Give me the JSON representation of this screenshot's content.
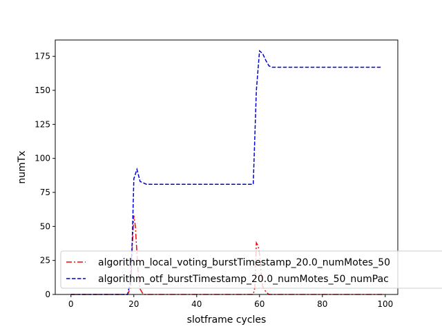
{
  "chart_data": {
    "type": "line",
    "title": "",
    "xlabel": "slotframe cycles",
    "ylabel": "numTx",
    "xlim": [
      -5,
      104
    ],
    "ylim": [
      0,
      187
    ],
    "xticks": [
      0,
      20,
      40,
      60,
      80,
      100
    ],
    "yticks": [
      0,
      25,
      50,
      75,
      100,
      125,
      150,
      175
    ],
    "grid": false,
    "legend_position": "lower-left",
    "series": [
      {
        "name": "algorithm_local_voting_burstTimestamp_20.0_numMotes_50",
        "color": "#ff0000",
        "style": "dashdot",
        "x": [
          0,
          18,
          19,
          19.5,
          20,
          20.5,
          21,
          21.5,
          22,
          23,
          24,
          58,
          58.5,
          59,
          59.5,
          60,
          60.5,
          61,
          62,
          63,
          99
        ],
        "y": [
          0,
          0,
          5,
          35,
          58,
          50,
          30,
          12,
          4,
          0,
          0,
          0,
          5,
          38,
          36,
          30,
          16,
          6,
          2,
          0,
          0
        ]
      },
      {
        "name": "algorithm_otf_burstTimestamp_20.0_numMotes_50_numPac",
        "color": "#0000cc",
        "style": "dashed",
        "x": [
          0,
          18,
          19,
          19.5,
          20,
          21,
          22,
          23,
          24,
          58,
          59,
          60,
          61,
          62,
          63,
          64,
          99
        ],
        "y": [
          0,
          0,
          10,
          40,
          85,
          92,
          83,
          82,
          81,
          81,
          150,
          179,
          177,
          172,
          168,
          167,
          167
        ]
      }
    ],
    "legend": {
      "entries": [
        "algorithm_local_voting_burstTimestamp_20.0_numMotes_50",
        "algorithm_otf_burstTimestamp_20.0_numMotes_50_numPac"
      ]
    }
  }
}
